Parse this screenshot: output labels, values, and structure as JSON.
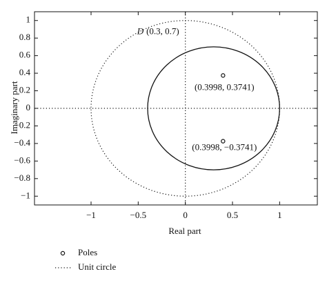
{
  "chart_data": {
    "type": "scatter",
    "x_label": "Real part",
    "y_label": "Imaginary part",
    "xlim": [
      -1.6,
      1.4
    ],
    "ylim": [
      -1.1,
      1.1
    ],
    "xticks": [
      {
        "value": -1,
        "label": "−1"
      },
      {
        "value": -0.5,
        "label": "−0.5"
      },
      0,
      0.5,
      1
    ],
    "yticks": [
      {
        "value": -1,
        "label": "−1"
      },
      {
        "value": -0.8,
        "label": "−0.8"
      },
      {
        "value": -0.6,
        "label": "−0.6"
      },
      {
        "value": -0.4,
        "label": "−0.4"
      },
      {
        "value": -0.2,
        "label": "−0.2"
      },
      0,
      0.2,
      0.4,
      0.6,
      0.8,
      1
    ],
    "zero_lines": true,
    "series": [
      {
        "name": "Poles",
        "color": "#111111",
        "x": [
          0.3998,
          0.3998
        ],
        "values": [
          0.3741,
          -0.3741
        ]
      }
    ],
    "circles": [
      {
        "name": "Unit circle",
        "center": [
          0,
          0
        ],
        "radius": 1,
        "style": "dotted",
        "color": "#111111"
      },
      {
        "center": [
          0.3,
          0
        ],
        "radius": 0.7,
        "style": "solid",
        "color": "#111111",
        "symbol": "D",
        "label": "(0.3, 0.7)"
      }
    ],
    "point_labels": [
      "(0.3998, 0.3741)",
      "(0.3998, −0.3741)"
    ]
  }
}
